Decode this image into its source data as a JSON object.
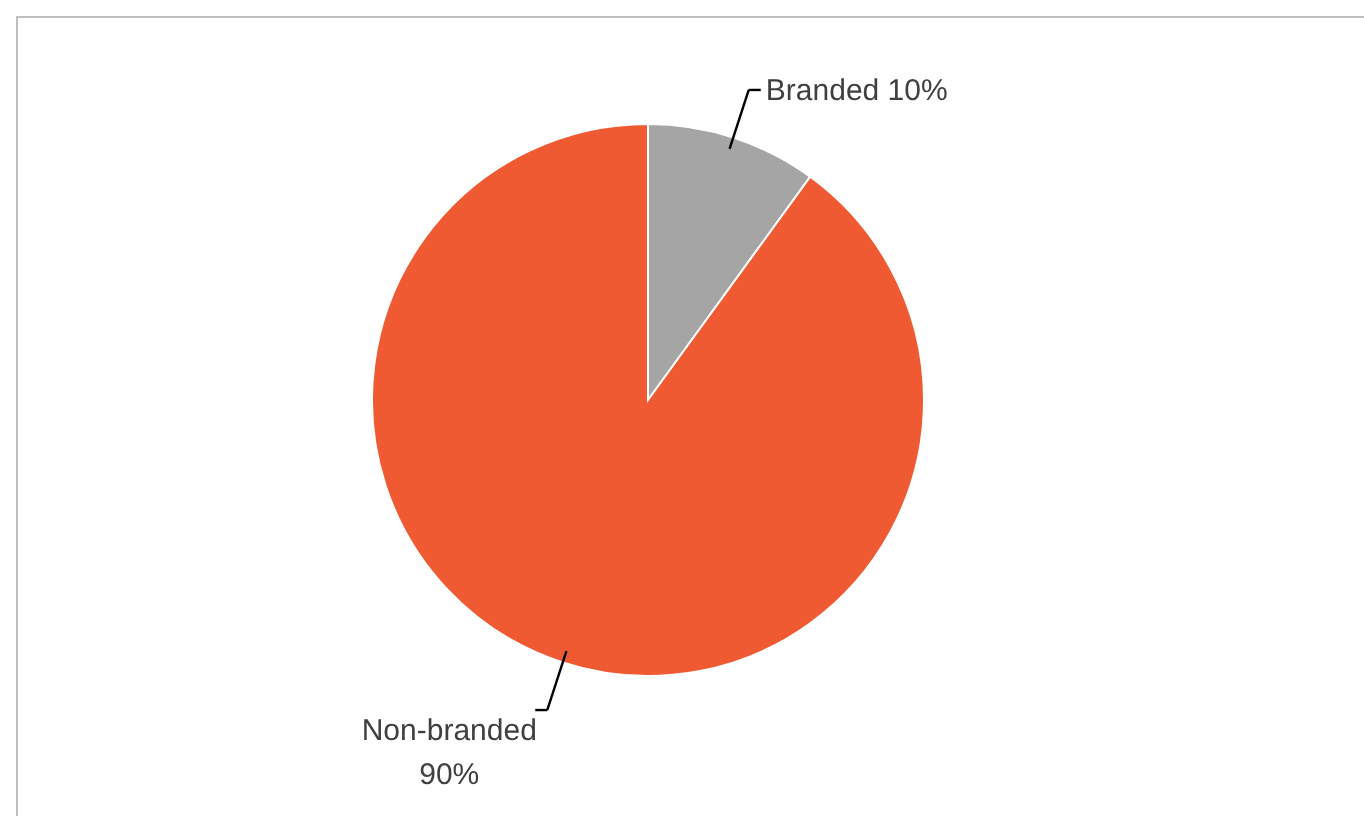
{
  "chart_data": {
    "type": "pie",
    "categories": [
      "Branded",
      "Non-branded"
    ],
    "values": [
      10,
      90
    ],
    "colors": [
      "#a5a5a5",
      "#f05a32"
    ],
    "value_labels": [
      "10%",
      "90%"
    ]
  }
}
